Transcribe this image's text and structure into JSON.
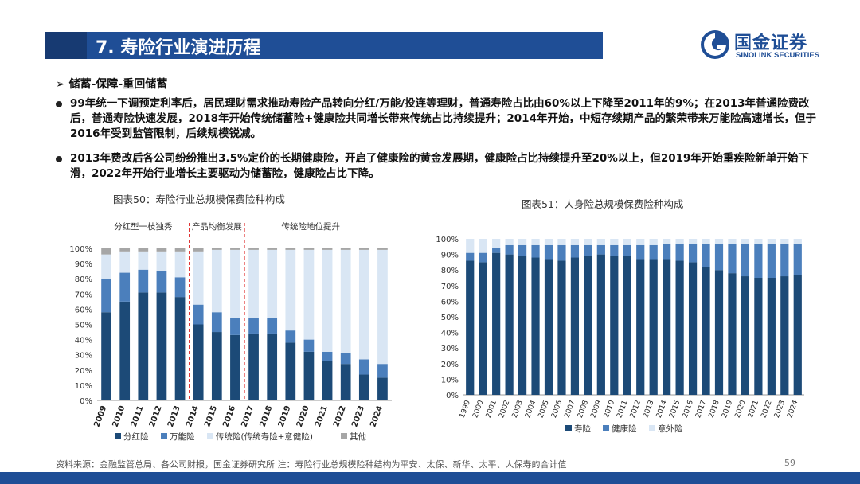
{
  "slide": {
    "title": "7. 寿险行业演进历程",
    "subhead": "➢ 储蓄-保障-重回储蓄",
    "bullets": [
      "99年统一下调预定利率后，居民理财需求推动寿险产品转向分红/万能/投连等理财，普通寿险占比由60%以上下降至2011年的9%；在2013年普通险费改后，普通寿险快速发展，2018年开始传统储蓄险+健康险共同增长带来传统占比持续提升；2014年开始，中短存续期产品的繁荣带来万能险高速增长，但于2016年受到监管限制，后续规模锐减。",
      "2013年费改后各公司纷纷推出3.5%定价的长期健康险，开启了健康险的黄金发展期，健康险占比持续提升至20%以上，但2019年开始重疾险新单开始下滑，2022年开始行业增长主要驱动为储蓄险，健康险占比下降。"
    ],
    "footer": "资料来源：金融监管总局、各公司财报，国金证券研究所 注：寿险行业总规模险种结构为平安、太保、新华、太平、人保寿的合计值",
    "page_number": "59"
  },
  "logo": {
    "cn": "国金证券",
    "en": "SINOLINK SECURITIES"
  },
  "colors": {
    "dark": "#1c4a77",
    "mid": "#4b7fbc",
    "light": "#d9e6f4",
    "gray": "#a6a6a6",
    "divider": "#e03030"
  },
  "chart_data": [
    {
      "type": "bar",
      "stacked": true,
      "title": "图表50：寿险行业总规模保费险种构成",
      "categories": [
        "2009",
        "2010",
        "2011",
        "2012",
        "2013",
        "2014",
        "2015",
        "2016",
        "2017",
        "2018",
        "2019",
        "2020",
        "2021",
        "2022",
        "2023",
        "2024"
      ],
      "series": [
        {
          "name": "分红险",
          "values": [
            58,
            65,
            71,
            71,
            68,
            50,
            45,
            43,
            44,
            44,
            38,
            32,
            26,
            24,
            17,
            15
          ]
        },
        {
          "name": "万能险",
          "values": [
            22,
            19,
            15,
            14,
            13,
            13,
            13,
            11,
            10,
            10,
            8,
            8,
            6,
            7,
            10,
            9
          ]
        },
        {
          "name": "传统险(传统寿险+意健险)",
          "values": [
            16,
            14,
            12,
            13,
            17,
            35,
            41,
            45,
            45,
            45,
            53,
            59,
            67,
            68,
            72,
            75
          ]
        },
        {
          "name": "其他",
          "values": [
            4,
            2,
            2,
            2,
            2,
            2,
            1,
            1,
            1,
            1,
            1,
            1,
            1,
            1,
            1,
            1
          ]
        }
      ],
      "ylim": [
        0,
        100
      ],
      "yticks": [
        "0%",
        "10%",
        "20%",
        "30%",
        "40%",
        "50%",
        "60%",
        "70%",
        "80%",
        "90%",
        "100%"
      ],
      "annotations": [
        "分红型一枝独秀",
        "产品均衡发展",
        "传统险地位提升"
      ],
      "legend_position": "bottom"
    },
    {
      "type": "bar",
      "stacked": true,
      "title": "图表51：人身险总规模保费险种构成",
      "categories": [
        "1999",
        "2000",
        "2001",
        "2002",
        "2003",
        "2004",
        "2005",
        "2006",
        "2007",
        "2008",
        "2009",
        "2010",
        "2011",
        "2012",
        "2013",
        "2014",
        "2015",
        "2016",
        "2017",
        "2018",
        "2019",
        "2020",
        "2021",
        "2022",
        "2023",
        "2024"
      ],
      "series": [
        {
          "name": "寿险",
          "values": [
            86,
            85,
            91,
            90,
            89,
            88,
            87,
            86,
            88,
            89,
            90,
            89,
            89,
            87,
            87,
            87,
            86,
            85,
            82,
            80,
            78,
            76,
            75,
            75,
            76,
            77
          ]
        },
        {
          "name": "健康险",
          "values": [
            5,
            6,
            3,
            6,
            7,
            8,
            9,
            10,
            8,
            7,
            6,
            7,
            7,
            9,
            9,
            10,
            11,
            12,
            15,
            17,
            19,
            21,
            22,
            22,
            21,
            20
          ]
        },
        {
          "name": "意外险",
          "values": [
            9,
            9,
            6,
            4,
            4,
            4,
            4,
            4,
            4,
            4,
            4,
            4,
            4,
            4,
            4,
            3,
            3,
            3,
            3,
            3,
            3,
            3,
            3,
            3,
            3,
            3
          ]
        }
      ],
      "ylim": [
        0,
        100
      ],
      "yticks": [
        "0%",
        "10%",
        "20%",
        "30%",
        "40%",
        "50%",
        "60%",
        "70%",
        "80%",
        "90%",
        "100%"
      ],
      "legend_position": "bottom"
    }
  ]
}
